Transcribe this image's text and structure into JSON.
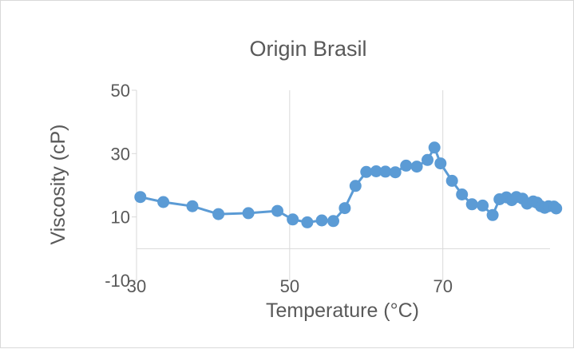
{
  "chart_data": {
    "type": "scatter",
    "title": "Origin Brasil",
    "xlabel": "Temperature (°C)",
    "ylabel": "Viscosity (cP)",
    "xlim": [
      30,
      84
    ],
    "ylim": [
      -10,
      50
    ],
    "x_ticks": [
      "30",
      "50",
      "70"
    ],
    "y_ticks": [
      "50",
      "30",
      "10",
      "-10"
    ],
    "grid": "vertical",
    "legend": "none",
    "series": [
      {
        "color": "#5b9bd5",
        "marker": "circle",
        "line": true,
        "x": [
          30.5,
          33.5,
          37.3,
          40.7,
          44.6,
          48.4,
          50.4,
          52.3,
          54.2,
          55.7,
          57.2,
          58.6,
          60.0,
          61.3,
          62.5,
          63.8,
          65.2,
          66.6,
          68.0,
          68.9,
          69.7,
          71.2,
          72.5,
          73.8,
          75.2,
          76.5,
          77.4,
          78.3,
          79.0,
          79.6,
          80.4,
          81.0,
          81.8,
          82.3,
          82.8,
          83.3,
          83.8,
          84.5,
          84.8
        ],
        "y": [
          16.3,
          14.7,
          13.4,
          10.9,
          11.2,
          11.9,
          9.2,
          8.3,
          8.9,
          8.7,
          12.8,
          19.8,
          24.2,
          24.4,
          24.3,
          24.1,
          26.2,
          25.9,
          28.0,
          31.9,
          26.9,
          21.4,
          17.1,
          14.0,
          13.6,
          10.6,
          15.6,
          16.2,
          15.3,
          16.3,
          15.8,
          14.2,
          14.9,
          14.5,
          13.4,
          12.9,
          13.4,
          13.3,
          12.7
        ]
      }
    ]
  }
}
